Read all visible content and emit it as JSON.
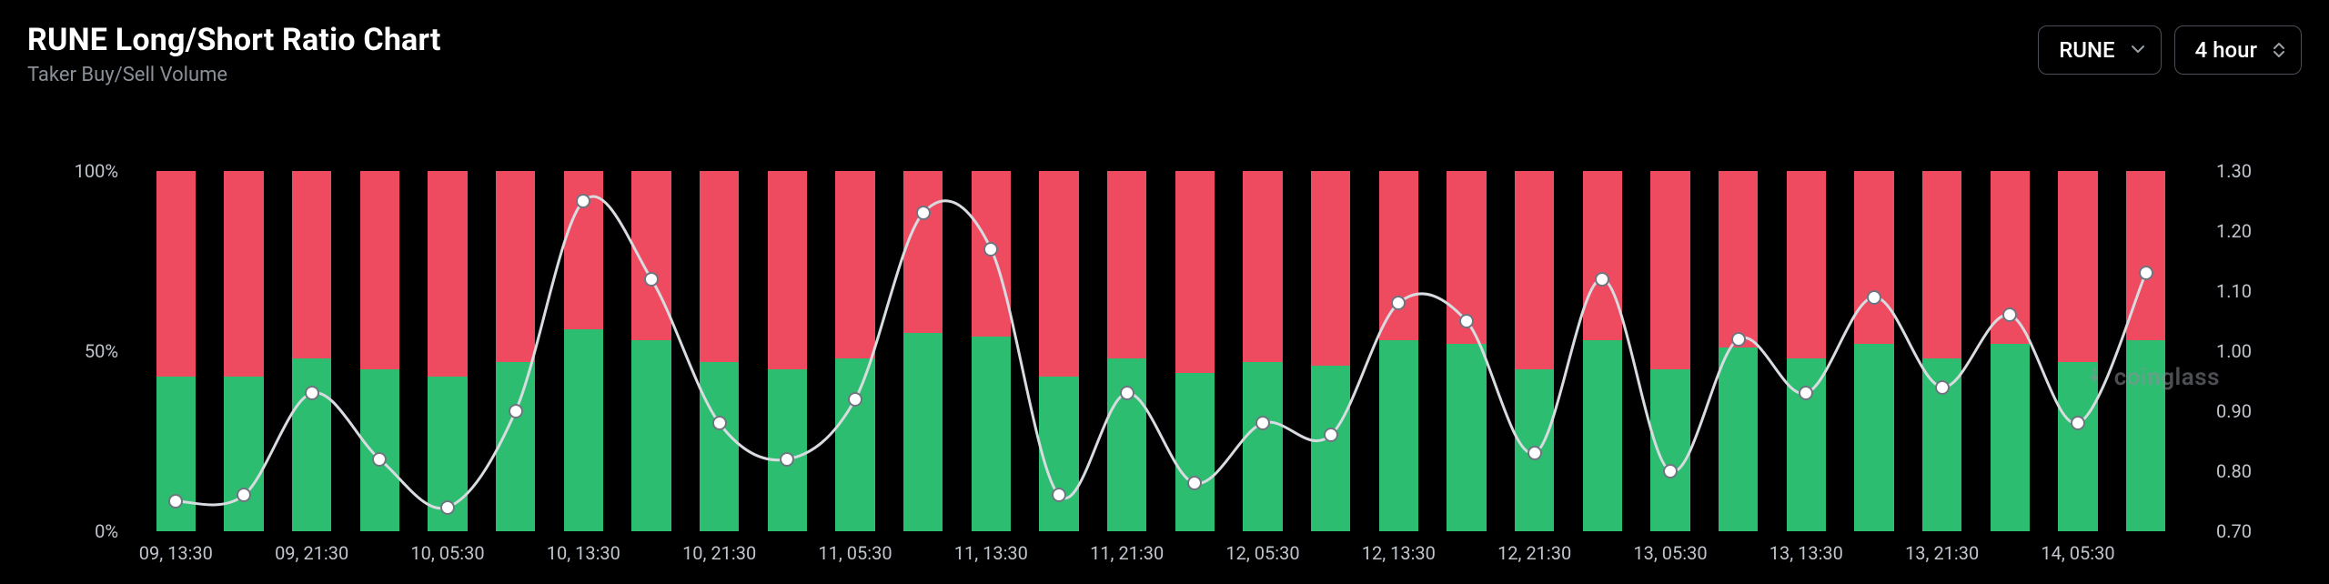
{
  "header": {
    "title": "RUNE Long/Short Ratio Chart",
    "subtitle": "Taker Buy/Sell Volume"
  },
  "controls": {
    "symbol_selector": {
      "value": "RUNE"
    },
    "interval_selector": {
      "value": "4 hour"
    }
  },
  "watermark": {
    "text": "coinglass"
  },
  "chart": {
    "type": "stacked-bar-with-line",
    "background_color": "#000000",
    "bar_long_color": "#2dbd70",
    "bar_short_color": "#ef4b60",
    "line_color": "#d8dbe0",
    "line_width": 3,
    "marker_fill": "#ffffff",
    "marker_stroke": "#6f7580",
    "marker_stroke_width": 2,
    "marker_radius": 8,
    "axis_text_color": "#c0c5cc",
    "axis_fontsize": 20,
    "bar_width_ratio": 0.58,
    "left_axis": {
      "min": 0,
      "max": 100,
      "ticks": [
        {
          "v": 0,
          "label": "0%"
        },
        {
          "v": 50,
          "label": "50%"
        },
        {
          "v": 100,
          "label": "100%"
        }
      ]
    },
    "right_axis": {
      "min": 0.7,
      "max": 1.3,
      "ticks": [
        {
          "v": 0.7,
          "label": "0.70"
        },
        {
          "v": 0.8,
          "label": "0.80"
        },
        {
          "v": 0.9,
          "label": "0.90"
        },
        {
          "v": 1.0,
          "label": "1.00"
        },
        {
          "v": 1.1,
          "label": "1.10"
        },
        {
          "v": 1.2,
          "label": "1.20"
        },
        {
          "v": 1.3,
          "label": "1.30"
        }
      ]
    },
    "x_labels": [
      "09, 13:30",
      "09, 21:30",
      "10, 05:30",
      "10, 13:30",
      "10, 21:30",
      "11, 05:30",
      "11, 13:30",
      "11, 21:30",
      "12, 05:30",
      "12, 13:30",
      "12, 21:30",
      "13, 05:30",
      "13, 13:30",
      "13, 21:30",
      "14, 05:30"
    ],
    "x_label_every": 2,
    "data": [
      {
        "long": 43,
        "ratio": 0.75
      },
      {
        "long": 43,
        "ratio": 0.76
      },
      {
        "long": 48,
        "ratio": 0.93
      },
      {
        "long": 45,
        "ratio": 0.82
      },
      {
        "long": 43,
        "ratio": 0.74
      },
      {
        "long": 47,
        "ratio": 0.9
      },
      {
        "long": 56,
        "ratio": 1.25
      },
      {
        "long": 53,
        "ratio": 1.12
      },
      {
        "long": 47,
        "ratio": 0.88
      },
      {
        "long": 45,
        "ratio": 0.82
      },
      {
        "long": 48,
        "ratio": 0.92
      },
      {
        "long": 55,
        "ratio": 1.23
      },
      {
        "long": 54,
        "ratio": 1.17
      },
      {
        "long": 43,
        "ratio": 0.76
      },
      {
        "long": 48,
        "ratio": 0.93
      },
      {
        "long": 44,
        "ratio": 0.78
      },
      {
        "long": 47,
        "ratio": 0.88
      },
      {
        "long": 46,
        "ratio": 0.86
      },
      {
        "long": 53,
        "ratio": 1.08
      },
      {
        "long": 52,
        "ratio": 1.05
      },
      {
        "long": 45,
        "ratio": 0.83
      },
      {
        "long": 53,
        "ratio": 1.12
      },
      {
        "long": 45,
        "ratio": 0.8
      },
      {
        "long": 51,
        "ratio": 1.02
      },
      {
        "long": 48,
        "ratio": 0.93
      },
      {
        "long": 52,
        "ratio": 1.09
      },
      {
        "long": 48,
        "ratio": 0.94
      },
      {
        "long": 52,
        "ratio": 1.06
      },
      {
        "long": 47,
        "ratio": 0.88
      },
      {
        "long": 53,
        "ratio": 1.13
      }
    ]
  }
}
